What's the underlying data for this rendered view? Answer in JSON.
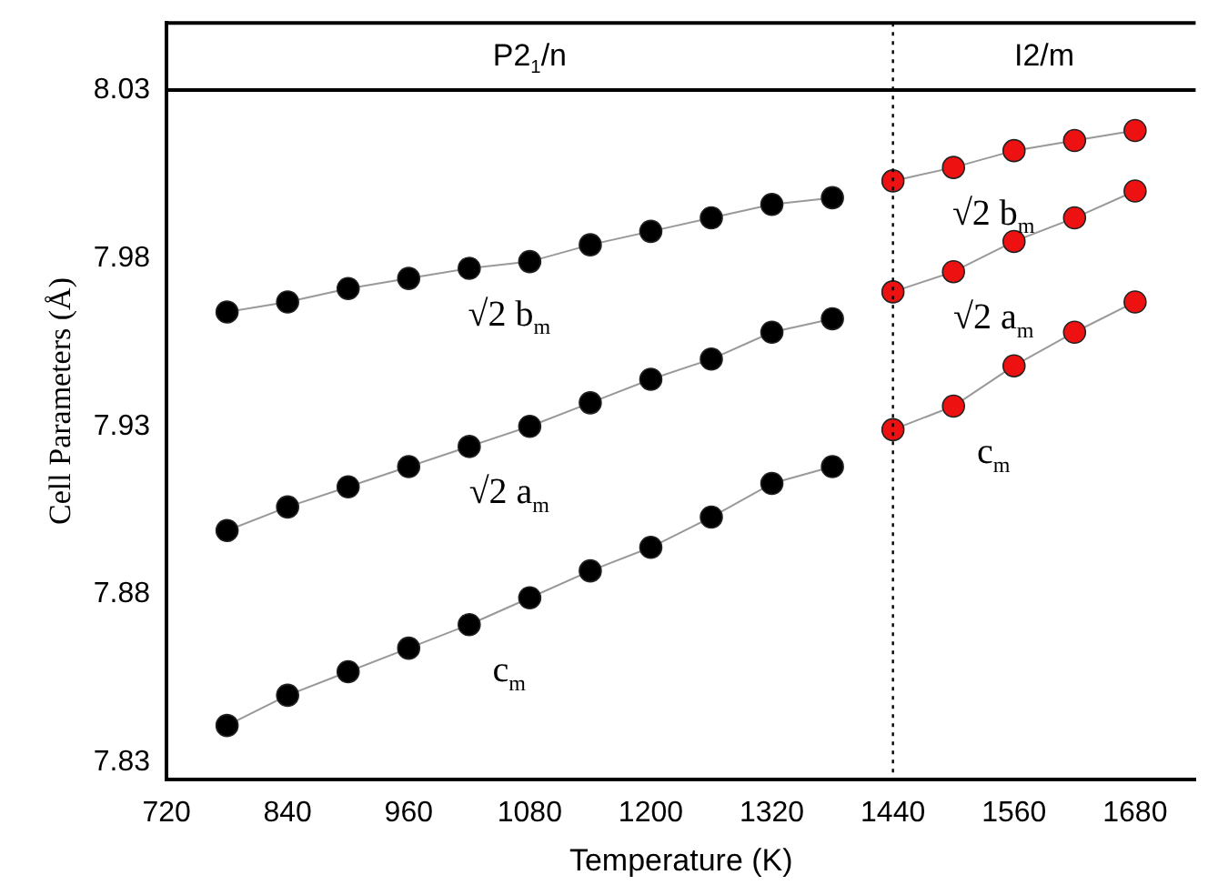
{
  "chart_data": {
    "type": "line",
    "xlabel": "Temperature (K)",
    "ylabel": "Cell Parameters (Å)",
    "xlim": [
      720,
      1740
    ],
    "xticks": [
      720,
      840,
      960,
      1080,
      1200,
      1320,
      1440,
      1560,
      1680
    ],
    "ylim": [
      7.825,
      8.05
    ],
    "yticks": [
      7.83,
      7.88,
      7.93,
      7.98,
      8.03
    ],
    "grid": false,
    "legend": false,
    "marker": "circle",
    "line_style": "solid",
    "series": [
      {
        "name": "√2 b$_{m}$",
        "color": "#000000",
        "x": [
          780,
          840,
          900,
          960,
          1020,
          1080,
          1140,
          1200,
          1260,
          1320,
          1380
        ],
        "values": [
          7.964,
          7.967,
          7.971,
          7.974,
          7.977,
          7.979,
          7.984,
          7.988,
          7.992,
          7.996,
          7.998
        ]
      },
      {
        "name": "√2 a$_{m}$",
        "color": "#000000",
        "x": [
          780,
          840,
          900,
          960,
          1020,
          1080,
          1140,
          1200,
          1260,
          1320,
          1380
        ],
        "values": [
          7.899,
          7.906,
          7.912,
          7.918,
          7.924,
          7.93,
          7.937,
          7.944,
          7.95,
          7.958,
          7.962
        ]
      },
      {
        "name": "c$_{m}$",
        "color": "#000000",
        "x": [
          780,
          840,
          900,
          960,
          1020,
          1080,
          1140,
          1200,
          1260,
          1320,
          1380
        ],
        "values": [
          7.841,
          7.85,
          7.857,
          7.864,
          7.871,
          7.879,
          7.887,
          7.894,
          7.903,
          7.913,
          7.918
        ]
      },
      {
        "name": "√2 b$_{m}$",
        "color": "#ee1111",
        "x": [
          1440,
          1500,
          1560,
          1620,
          1680
        ],
        "values": [
          8.003,
          8.007,
          8.012,
          8.015,
          8.018
        ]
      },
      {
        "name": "√2 a$_{m}$",
        "color": "#ee1111",
        "x": [
          1440,
          1500,
          1560,
          1620,
          1680
        ],
        "values": [
          7.97,
          7.976,
          7.985,
          7.992,
          8.0
        ]
      },
      {
        "name": "c$_{m}$",
        "color": "#ee1111",
        "x": [
          1440,
          1500,
          1560,
          1620,
          1680
        ],
        "values": [
          7.929,
          7.936,
          7.948,
          7.958,
          7.967
        ]
      }
    ],
    "ref_lines": [
      {
        "axis": "x",
        "value": 1440,
        "line_style": "dotted",
        "color": "#000000"
      },
      {
        "axis": "y",
        "value": 8.03,
        "line_style": "solid",
        "color": "#000000"
      }
    ],
    "annotations": [
      "P2$_{1}$/n",
      "I2/m"
    ]
  }
}
